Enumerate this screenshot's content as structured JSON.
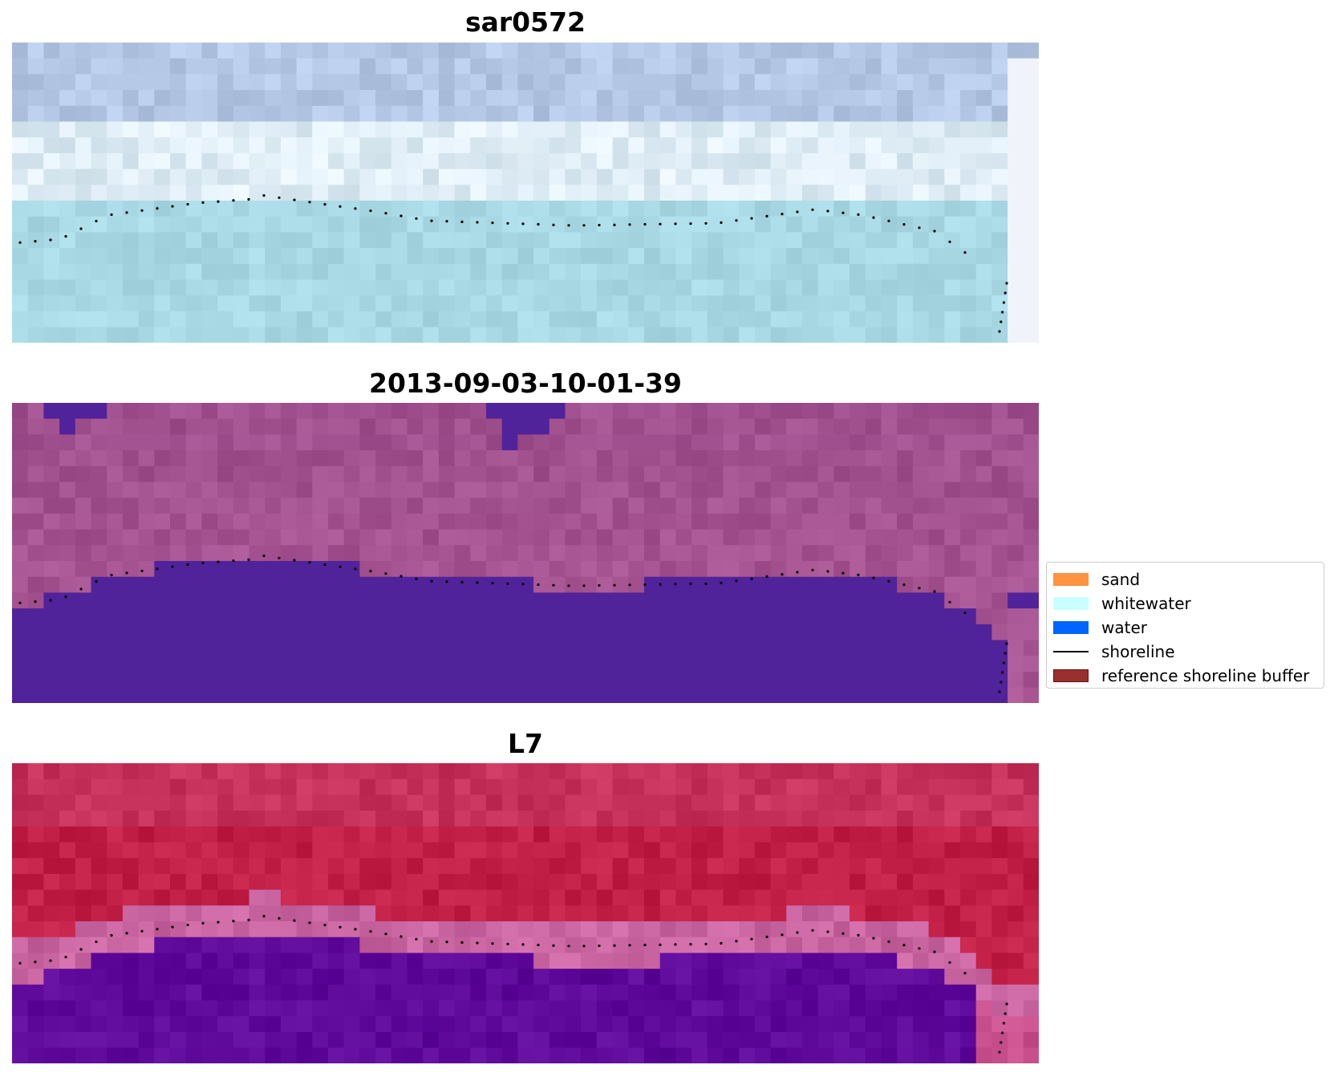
{
  "panels": [
    {
      "title": "sar0572",
      "palette": "sar"
    },
    {
      "title": "2013-09-03-10-01-39",
      "palette": "classified"
    },
    {
      "title": "L7",
      "palette": "l7"
    }
  ],
  "legend": {
    "items": [
      {
        "label": "sand",
        "kind": "patch",
        "color": "#ff9340"
      },
      {
        "label": "whitewater",
        "kind": "patch",
        "color": "#c9ffff"
      },
      {
        "label": "water",
        "kind": "patch",
        "color": "#0064ff"
      },
      {
        "label": "shoreline",
        "kind": "line",
        "color": "#000000"
      },
      {
        "label": "reference shoreline buffer",
        "kind": "patch",
        "color": "#9a2f30",
        "edge": "#6a1010"
      }
    ]
  },
  "colors": {
    "sar_base": "#a8d8e4",
    "sar_sky": "#b4c8e6",
    "classified_land": "#a0508e",
    "classified_water": "#51239a",
    "l7_land": "#c0193f",
    "l7_water": "#5f0a9a",
    "shoreline_dots": "#000000"
  }
}
